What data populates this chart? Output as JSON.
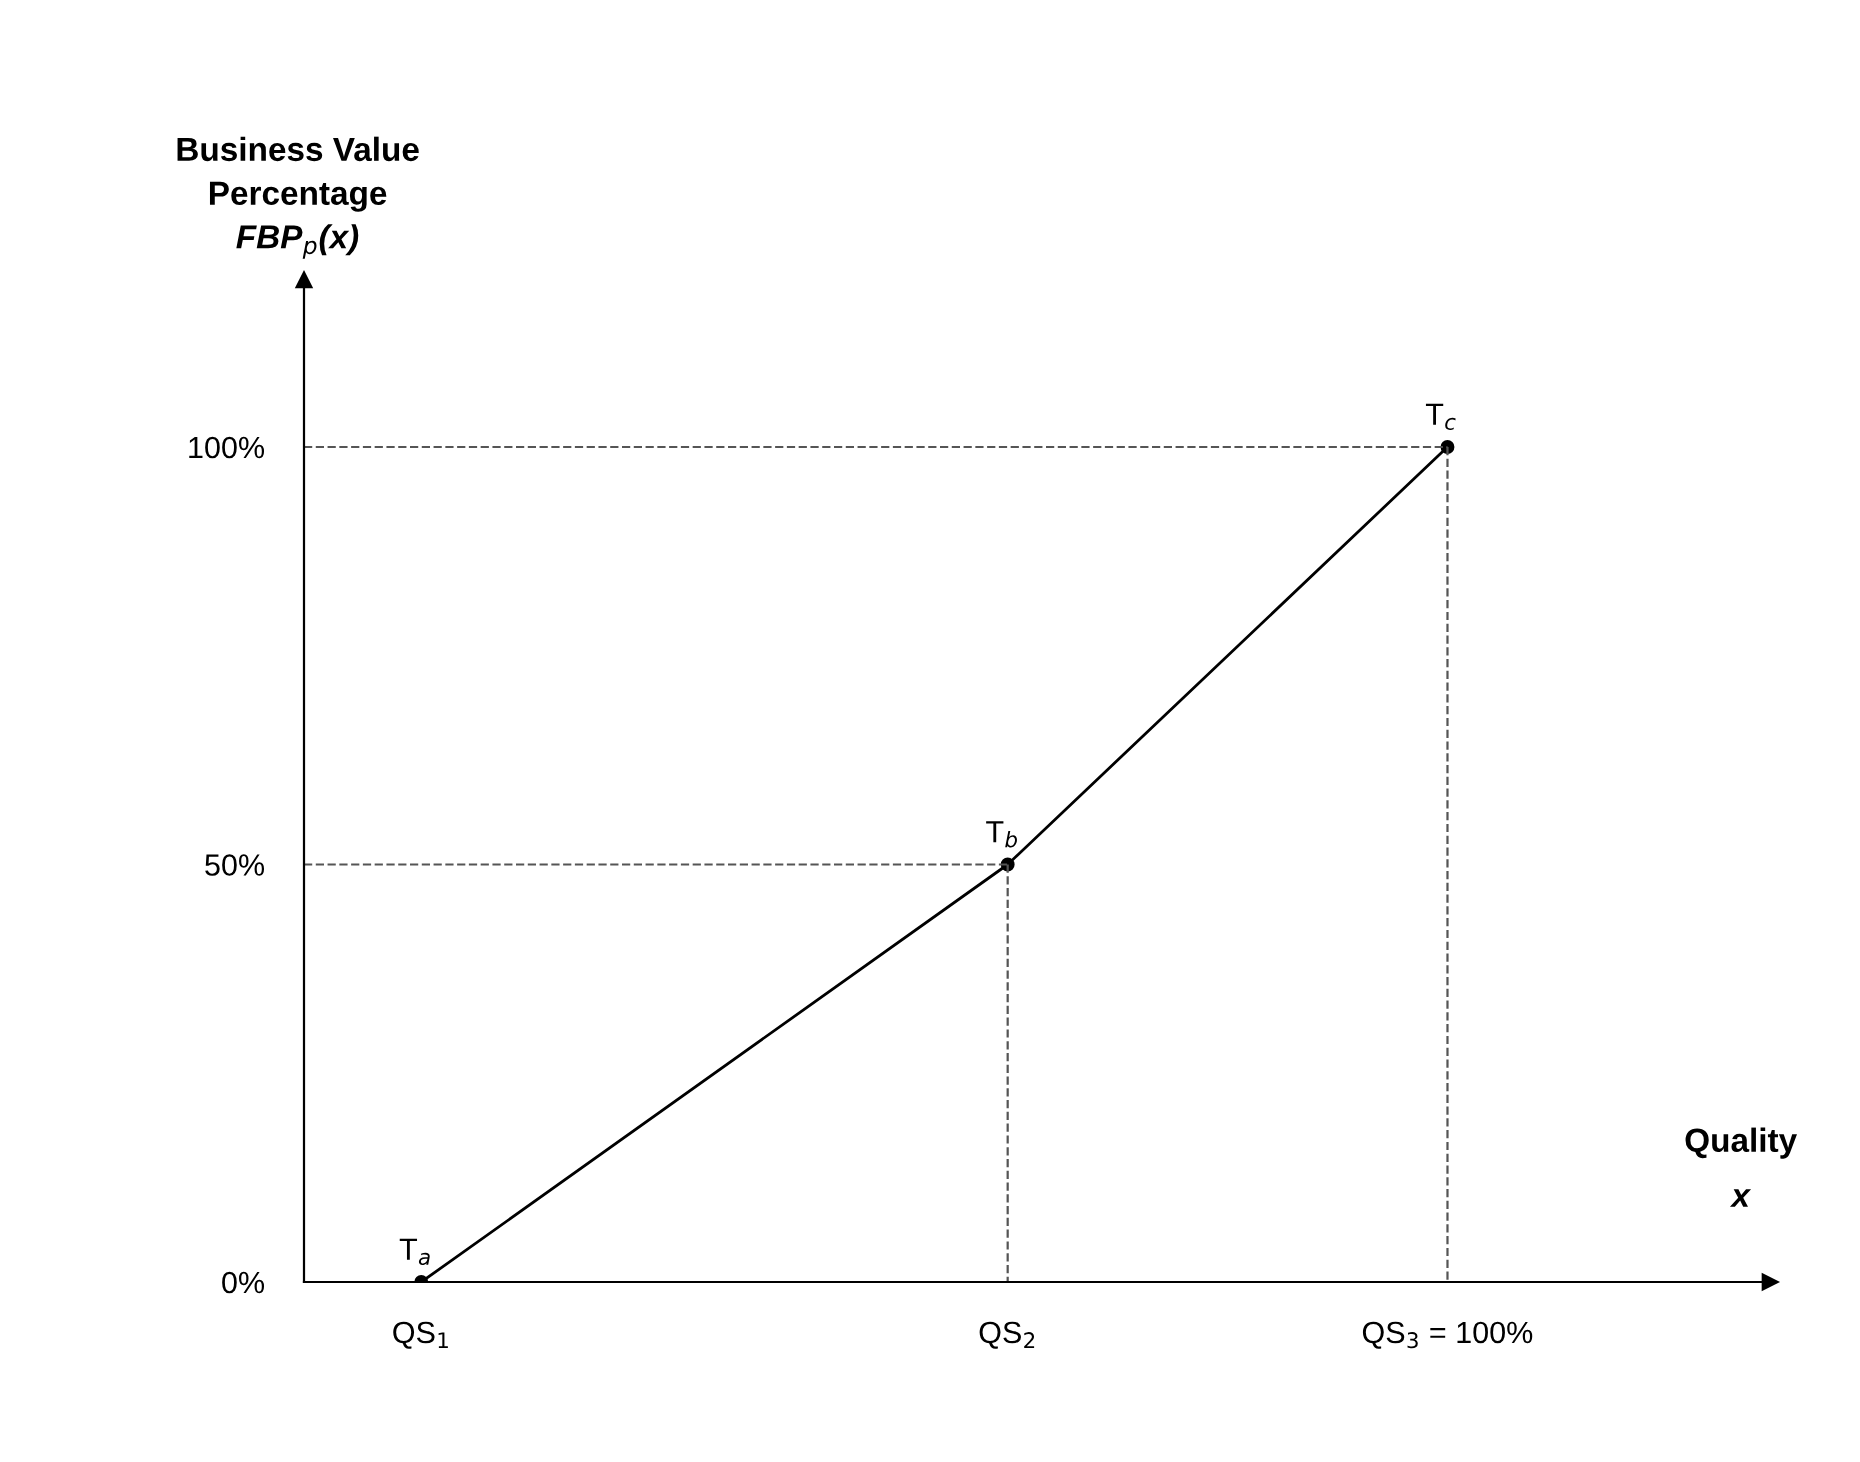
{
  "chart_data": {
    "type": "line",
    "ylabel": "Business Value\nPercentage\nFBP$_{p}$(x)",
    "xlabel": "Quality\nx",
    "categories": [
      "QS$_{1}$",
      null,
      null,
      null,
      "QS$_{2}$",
      null,
      null,
      "QS$_{3}$ = 100%"
    ],
    "series": [
      {
        "color": "#000000",
        "values": [
          0,
          null,
          null,
          null,
          50,
          null,
          null,
          100
        ]
      }
    ],
    "marker": "circle",
    "line_style": "solid",
    "ylim": [
      0,
      120
    ],
    "yticks": [
      {
        "value": 0,
        "label": "0%"
      },
      {
        "value": 50,
        "label": "50%"
      },
      {
        "value": 100,
        "label": "100%"
      }
    ],
    "ref_lines": [
      {
        "axis": "y",
        "value": 50,
        "color": "#555555",
        "line_style": "dashed"
      },
      {
        "axis": "y",
        "value": 100,
        "color": "#555555",
        "line_style": "dashed"
      }
    ],
    "annotations": [
      "T$_{a}$",
      "T$_{b}$",
      "T$_{c}$"
    ],
    "grid": false,
    "legend": false
  }
}
